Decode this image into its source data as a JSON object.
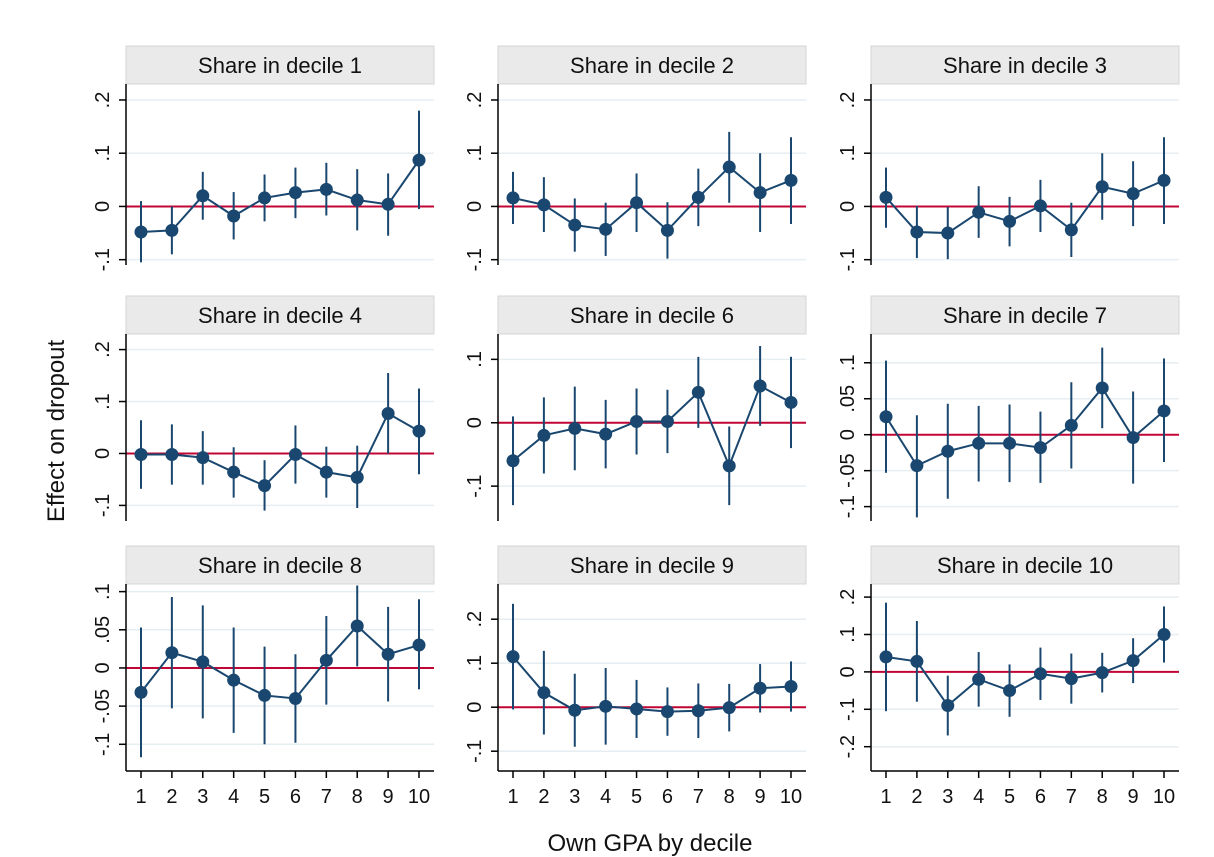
{
  "figure": {
    "ylabel": "Effect on dropout",
    "xlabel": "Own GPA by decile"
  },
  "colors": {
    "marker": "#1a476f",
    "zero_line": "#c10534",
    "strip_fill": "#eaeaea",
    "grid": "#e6eef2"
  },
  "chart_data": [
    {
      "type": "scatter",
      "title": "Share in decile 1",
      "x": [
        1,
        2,
        3,
        4,
        5,
        6,
        7,
        8,
        9,
        10
      ],
      "xticks": [
        "1",
        "2",
        "3",
        "4",
        "5",
        "6",
        "7",
        "8",
        "9",
        "10"
      ],
      "y": [
        -0.048,
        -0.045,
        0.02,
        -0.018,
        0.016,
        0.026,
        0.032,
        0.012,
        0.004,
        0.087
      ],
      "ci_low": [
        -0.105,
        -0.09,
        -0.025,
        -0.062,
        -0.028,
        -0.022,
        -0.017,
        -0.045,
        -0.055,
        -0.005
      ],
      "ci_high": [
        0.01,
        0.0,
        0.065,
        0.027,
        0.06,
        0.073,
        0.082,
        0.07,
        0.062,
        0.18
      ],
      "ylim": [
        -0.11,
        0.23
      ],
      "yticks": [
        -0.1,
        0,
        0.1,
        0.2
      ],
      "ytick_labels": [
        "-.1",
        "0",
        ".1",
        ".2"
      ],
      "grid": true
    },
    {
      "type": "scatter",
      "title": "Share in decile 2",
      "x": [
        1,
        2,
        3,
        4,
        5,
        6,
        7,
        8,
        9,
        10
      ],
      "xticks": [
        "1",
        "2",
        "3",
        "4",
        "5",
        "6",
        "7",
        "8",
        "9",
        "10"
      ],
      "y": [
        0.016,
        0.003,
        -0.035,
        -0.043,
        0.007,
        -0.045,
        0.017,
        0.074,
        0.026,
        0.049
      ],
      "ci_low": [
        -0.033,
        -0.048,
        -0.085,
        -0.093,
        -0.048,
        -0.098,
        -0.037,
        0.007,
        -0.048,
        -0.033
      ],
      "ci_high": [
        0.065,
        0.055,
        0.015,
        0.007,
        0.062,
        0.008,
        0.071,
        0.14,
        0.1,
        0.13
      ],
      "ylim": [
        -0.11,
        0.23
      ],
      "yticks": [
        -0.1,
        0,
        0.1,
        0.2
      ],
      "ytick_labels": [
        "-.1",
        "0",
        ".1",
        ".2"
      ],
      "grid": true
    },
    {
      "type": "scatter",
      "title": "Share in decile 3",
      "x": [
        1,
        2,
        3,
        4,
        5,
        6,
        7,
        8,
        9,
        10
      ],
      "xticks": [
        "1",
        "2",
        "3",
        "4",
        "5",
        "6",
        "7",
        "8",
        "9",
        "10"
      ],
      "y": [
        0.017,
        -0.048,
        -0.05,
        -0.011,
        -0.028,
        0.001,
        -0.044,
        0.037,
        0.024,
        0.049
      ],
      "ci_low": [
        -0.04,
        -0.097,
        -0.099,
        -0.059,
        -0.075,
        -0.048,
        -0.095,
        -0.025,
        -0.037,
        -0.033
      ],
      "ci_high": [
        0.073,
        0.001,
        -0.001,
        0.038,
        0.018,
        0.05,
        0.007,
        0.1,
        0.085,
        0.13
      ],
      "ylim": [
        -0.11,
        0.23
      ],
      "yticks": [
        -0.1,
        0,
        0.1,
        0.2
      ],
      "ytick_labels": [
        "-.1",
        "0",
        ".1",
        ".2"
      ],
      "grid": true
    },
    {
      "type": "scatter",
      "title": "Share in decile 4",
      "x": [
        1,
        2,
        3,
        4,
        5,
        6,
        7,
        8,
        9,
        10
      ],
      "xticks": [
        "1",
        "2",
        "3",
        "4",
        "5",
        "6",
        "7",
        "8",
        "9",
        "10"
      ],
      "y": [
        -0.002,
        -0.002,
        -0.008,
        -0.036,
        -0.062,
        -0.002,
        -0.036,
        -0.046,
        0.077,
        0.043
      ],
      "ci_low": [
        -0.068,
        -0.06,
        -0.06,
        -0.085,
        -0.11,
        -0.058,
        -0.085,
        -0.105,
        0.0,
        -0.04
      ],
      "ci_high": [
        0.064,
        0.056,
        0.043,
        0.012,
        -0.013,
        0.054,
        0.013,
        0.015,
        0.155,
        0.125
      ],
      "ylim": [
        -0.13,
        0.23
      ],
      "yticks": [
        -0.1,
        0,
        0.1,
        0.2
      ],
      "ytick_labels": [
        "-.1",
        "0",
        ".1",
        ".2"
      ],
      "grid": true
    },
    {
      "type": "scatter",
      "title": "Share in decile 6",
      "x": [
        1,
        2,
        3,
        4,
        5,
        6,
        7,
        8,
        9,
        10
      ],
      "xticks": [
        "1",
        "2",
        "3",
        "4",
        "5",
        "6",
        "7",
        "8",
        "9",
        "10"
      ],
      "y": [
        -0.06,
        -0.02,
        -0.009,
        -0.018,
        0.002,
        0.002,
        0.048,
        -0.068,
        0.058,
        0.032
      ],
      "ci_low": [
        -0.13,
        -0.08,
        -0.075,
        -0.072,
        -0.05,
        -0.048,
        -0.008,
        -0.13,
        -0.005,
        -0.04
      ],
      "ci_high": [
        0.01,
        0.04,
        0.057,
        0.036,
        0.054,
        0.052,
        0.104,
        -0.006,
        0.121,
        0.104
      ],
      "ylim": [
        -0.155,
        0.14
      ],
      "yticks": [
        -0.1,
        0,
        0.1
      ],
      "ytick_labels": [
        "-.1",
        "0",
        ".1"
      ],
      "grid": true
    },
    {
      "type": "scatter",
      "title": "Share in decile 7",
      "x": [
        1,
        2,
        3,
        4,
        5,
        6,
        7,
        8,
        9,
        10
      ],
      "xticks": [
        "1",
        "2",
        "3",
        "4",
        "5",
        "6",
        "7",
        "8",
        "9",
        "10"
      ],
      "y": [
        0.025,
        -0.043,
        -0.023,
        -0.012,
        -0.012,
        -0.018,
        0.013,
        0.065,
        -0.004,
        0.033
      ],
      "ci_low": [
        -0.053,
        -0.115,
        -0.089,
        -0.065,
        -0.066,
        -0.067,
        -0.047,
        0.009,
        -0.068,
        -0.038
      ],
      "ci_high": [
        0.103,
        0.027,
        0.043,
        0.04,
        0.042,
        0.032,
        0.073,
        0.121,
        0.06,
        0.106
      ],
      "ylim": [
        -0.12,
        0.14
      ],
      "yticks": [
        -0.1,
        -0.05,
        0,
        0.05,
        0.1
      ],
      "ytick_labels": [
        "-.1",
        "-.05",
        "0",
        ".05",
        ".1"
      ],
      "grid": true
    },
    {
      "type": "scatter",
      "title": "Share in decile 8",
      "x": [
        1,
        2,
        3,
        4,
        5,
        6,
        7,
        8,
        9,
        10
      ],
      "xticks": [
        "1",
        "2",
        "3",
        "4",
        "5",
        "6",
        "7",
        "8",
        "9",
        "10"
      ],
      "y": [
        -0.032,
        0.02,
        0.008,
        -0.016,
        -0.036,
        -0.04,
        0.01,
        0.055,
        0.018,
        0.03
      ],
      "ci_low": [
        -0.117,
        -0.053,
        -0.066,
        -0.085,
        -0.1,
        -0.098,
        -0.048,
        0.002,
        -0.044,
        -0.028
      ],
      "ci_high": [
        0.053,
        0.093,
        0.082,
        0.053,
        0.028,
        0.018,
        0.068,
        0.108,
        0.08,
        0.09
      ],
      "ylim": [
        -0.135,
        0.11
      ],
      "yticks": [
        -0.1,
        -0.05,
        0,
        0.05,
        0.1
      ],
      "ytick_labels": [
        "-.1",
        "-.05",
        "0",
        ".05",
        ".1"
      ],
      "grid": true
    },
    {
      "type": "scatter",
      "title": "Share in decile 9",
      "x": [
        1,
        2,
        3,
        4,
        5,
        6,
        7,
        8,
        9,
        10
      ],
      "xticks": [
        "1",
        "2",
        "3",
        "4",
        "5",
        "6",
        "7",
        "8",
        "9",
        "10"
      ],
      "y": [
        0.115,
        0.033,
        -0.007,
        0.002,
        -0.004,
        -0.01,
        -0.008,
        -0.001,
        0.043,
        0.047
      ],
      "ci_low": [
        -0.005,
        -0.062,
        -0.09,
        -0.085,
        -0.07,
        -0.065,
        -0.07,
        -0.055,
        -0.012,
        -0.01
      ],
      "ci_high": [
        0.235,
        0.128,
        0.076,
        0.089,
        0.062,
        0.045,
        0.054,
        0.053,
        0.098,
        0.104
      ],
      "ylim": [
        -0.145,
        0.28
      ],
      "yticks": [
        -0.1,
        0,
        0.1,
        0.2
      ],
      "ytick_labels": [
        "-.1",
        "0",
        ".1",
        ".2"
      ],
      "grid": true
    },
    {
      "type": "scatter",
      "title": "Share in decile 10",
      "x": [
        1,
        2,
        3,
        4,
        5,
        6,
        7,
        8,
        9,
        10
      ],
      "xticks": [
        "1",
        "2",
        "3",
        "4",
        "5",
        "6",
        "7",
        "8",
        "9",
        "10"
      ],
      "y": [
        0.04,
        0.028,
        -0.09,
        -0.02,
        -0.05,
        -0.005,
        -0.018,
        -0.002,
        0.03,
        0.1
      ],
      "ci_low": [
        -0.105,
        -0.08,
        -0.17,
        -0.093,
        -0.12,
        -0.075,
        -0.085,
        -0.055,
        -0.03,
        0.025
      ],
      "ci_high": [
        0.185,
        0.136,
        -0.01,
        0.053,
        0.02,
        0.065,
        0.049,
        0.051,
        0.09,
        0.175
      ],
      "ylim": [
        -0.265,
        0.235
      ],
      "yticks": [
        -0.2,
        -0.1,
        0,
        0.1,
        0.2
      ],
      "ytick_labels": [
        "-.2",
        "-.1",
        "0",
        ".1",
        ".2"
      ],
      "grid": true
    }
  ]
}
